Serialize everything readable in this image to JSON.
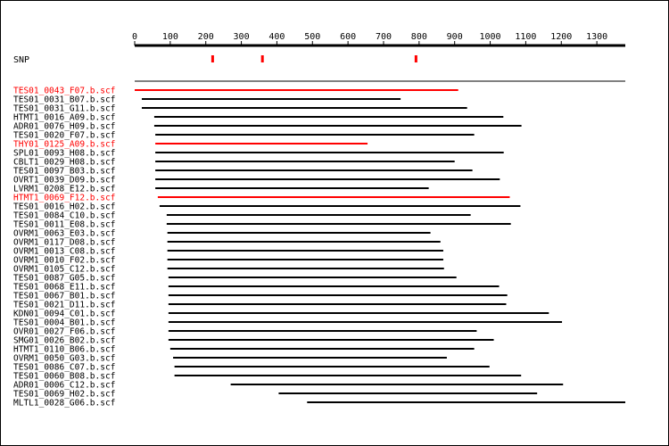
{
  "snp_label": "SNP",
  "colors": {
    "normal": "#000000",
    "highlight": "#ff0000",
    "snp": "#ff0000"
  },
  "axis": {
    "min": 0,
    "max": 1380,
    "ticks": [
      0,
      100,
      200,
      300,
      400,
      500,
      600,
      700,
      800,
      900,
      1000,
      1100,
      1200,
      1300
    ]
  },
  "snps": [
    218,
    358,
    790
  ],
  "reads": [
    {
      "name": "TES01_0043_F07.b.scf",
      "start": 0,
      "end": 910,
      "highlight": true
    },
    {
      "name": "TES01_0031_B07.b.scf",
      "start": 20,
      "end": 748,
      "highlight": false
    },
    {
      "name": "TES01_0031_G11.b.scf",
      "start": 20,
      "end": 935,
      "highlight": false
    },
    {
      "name": "HTMT1_0016_A09.b.scf",
      "start": 55,
      "end": 1037,
      "highlight": false
    },
    {
      "name": "ADR01_0076_H09.b.scf",
      "start": 55,
      "end": 1088,
      "highlight": false
    },
    {
      "name": "TES01_0020_F07.b.scf",
      "start": 58,
      "end": 955,
      "highlight": false
    },
    {
      "name": "THY01_0125_A09.b.scf",
      "start": 58,
      "end": 655,
      "highlight": true
    },
    {
      "name": "SPL01_0093_H08.b.scf",
      "start": 58,
      "end": 1038,
      "highlight": false
    },
    {
      "name": "CBLT1_0029_H08.b.scf",
      "start": 58,
      "end": 900,
      "highlight": false
    },
    {
      "name": "TES01_0097_B03.b.scf",
      "start": 58,
      "end": 950,
      "highlight": false
    },
    {
      "name": "OVRT1_0039_D09.b.scf",
      "start": 58,
      "end": 1027,
      "highlight": false
    },
    {
      "name": "LVRM1_0208_E12.b.scf",
      "start": 58,
      "end": 827,
      "highlight": false
    },
    {
      "name": "HTMT1_0069_F12.b.scf",
      "start": 65,
      "end": 1055,
      "highlight": true
    },
    {
      "name": "TES01_0016_H02.b.scf",
      "start": 70,
      "end": 1085,
      "highlight": false
    },
    {
      "name": "TES01_0084_C10.b.scf",
      "start": 90,
      "end": 945,
      "highlight": false
    },
    {
      "name": "TES01_0011_E08.b.scf",
      "start": 90,
      "end": 1058,
      "highlight": false
    },
    {
      "name": "OVRM1_0063_E03.b.scf",
      "start": 92,
      "end": 832,
      "highlight": false
    },
    {
      "name": "OVRM1_0117_D08.b.scf",
      "start": 92,
      "end": 860,
      "highlight": false
    },
    {
      "name": "OVRM1_0013_C08.b.scf",
      "start": 92,
      "end": 868,
      "highlight": false
    },
    {
      "name": "OVRM1_0010_F02.b.scf",
      "start": 92,
      "end": 868,
      "highlight": false
    },
    {
      "name": "OVRM1_0105_C12.b.scf",
      "start": 92,
      "end": 870,
      "highlight": false
    },
    {
      "name": "TES01_0087_G05.b.scf",
      "start": 95,
      "end": 905,
      "highlight": false
    },
    {
      "name": "TES01_0068_E11.b.scf",
      "start": 95,
      "end": 1025,
      "highlight": false
    },
    {
      "name": "TES01_0067_B01.b.scf",
      "start": 95,
      "end": 1048,
      "highlight": false
    },
    {
      "name": "TES01_0021_D11.b.scf",
      "start": 95,
      "end": 1045,
      "highlight": false
    },
    {
      "name": "KDN01_0094_C01.b.scf",
      "start": 95,
      "end": 1165,
      "highlight": false
    },
    {
      "name": "TES01_0004_B01.b.scf",
      "start": 95,
      "end": 1202,
      "highlight": false
    },
    {
      "name": "OVR01_0027_F06.b.scf",
      "start": 95,
      "end": 962,
      "highlight": false
    },
    {
      "name": "SMG01_0026_B02.b.scf",
      "start": 95,
      "end": 1010,
      "highlight": false
    },
    {
      "name": "HTMT1_0110_B06.b.scf",
      "start": 100,
      "end": 955,
      "highlight": false
    },
    {
      "name": "OVRM1_0050_G03.b.scf",
      "start": 108,
      "end": 878,
      "highlight": false
    },
    {
      "name": "TES01_0086_C07.b.scf",
      "start": 112,
      "end": 998,
      "highlight": false
    },
    {
      "name": "TES01_0060_B08.b.scf",
      "start": 112,
      "end": 1087,
      "highlight": false
    },
    {
      "name": "ADR01_0006_C12.b.scf",
      "start": 270,
      "end": 1205,
      "highlight": false
    },
    {
      "name": "TES01_0069_H02.b.scf",
      "start": 405,
      "end": 1132,
      "highlight": false
    },
    {
      "name": "MLTL1_0028_G06.b.scf",
      "start": 485,
      "end": 1380,
      "highlight": false
    }
  ]
}
